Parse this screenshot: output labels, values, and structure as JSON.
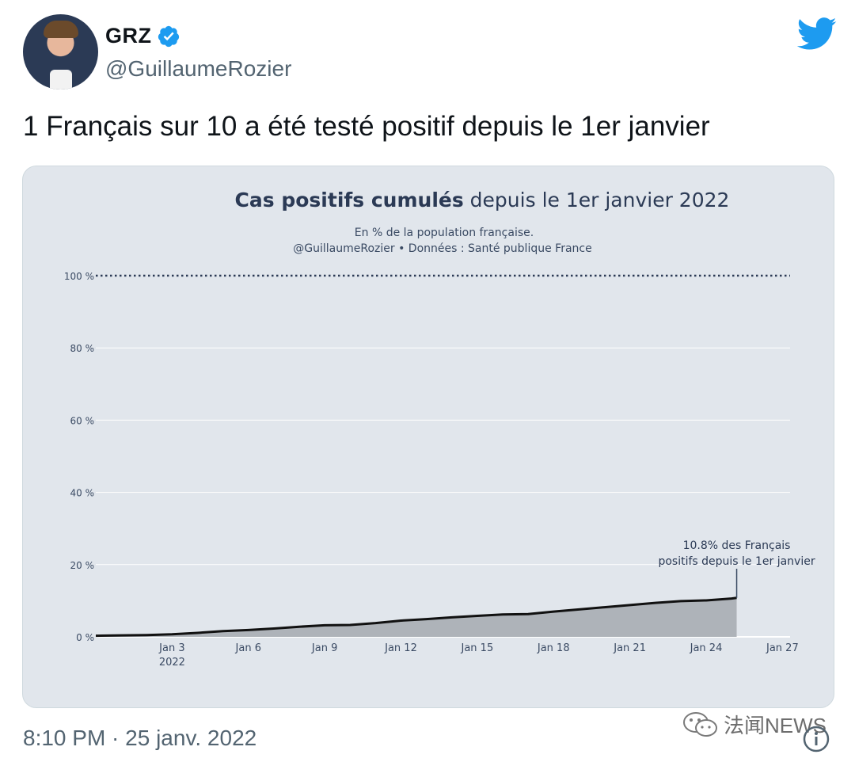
{
  "tweet": {
    "display_name": "GRZ",
    "handle": "@GuillaumeRozier",
    "text": "1 Français sur 10 a été testé positif depuis le 1er janvier",
    "timestamp": "8:10 PM · 25 janv. 2022",
    "verified_color": "#1d9bf0",
    "brand_color": "#1d9bf0"
  },
  "watermark": {
    "text": "法闻NEWS",
    "icon": "wechat-icon"
  },
  "chart_data": {
    "type": "area",
    "title_bold": "Cas positifs cumulés",
    "title_rest": " depuis le 1er janvier 2022",
    "subtitle_line1": "En % de la population française.",
    "subtitle_line2": "@GuillaumeRozier • Données : Santé publique France",
    "y_ticks": [
      "0 %",
      "20 %",
      "40 %",
      "60 %",
      "80 %",
      "100 %"
    ],
    "y_tick_values": [
      0,
      20,
      40,
      60,
      80,
      100
    ],
    "ylim": [
      0,
      100
    ],
    "x_ticks": [
      "Jan 3",
      "Jan 6",
      "Jan 9",
      "Jan 12",
      "Jan 15",
      "Jan 18",
      "Jan 21",
      "Jan 24",
      "Jan 27"
    ],
    "x_tick_days": [
      3,
      6,
      9,
      12,
      15,
      18,
      21,
      24,
      27
    ],
    "x_tick_sublabel": "2022",
    "xlim": [
      0,
      27.3
    ],
    "grid": true,
    "reference_line": {
      "value": 100,
      "style": "dotted"
    },
    "series": [
      {
        "x": [
          0,
          1,
          2,
          3,
          4,
          5,
          6,
          7,
          8,
          9,
          10,
          11,
          12,
          13,
          14,
          15,
          16,
          17,
          18,
          19,
          20,
          21,
          22,
          23,
          24,
          25,
          25.2
        ],
        "values": [
          0.3,
          0.4,
          0.5,
          0.7,
          1.1,
          1.6,
          1.9,
          2.3,
          2.8,
          3.2,
          3.3,
          3.8,
          4.5,
          4.9,
          5.4,
          5.8,
          6.2,
          6.3,
          7.0,
          7.6,
          8.2,
          8.8,
          9.4,
          9.9,
          10.1,
          10.6,
          10.8
        ]
      }
    ],
    "annotation": {
      "line1": "10.8% des Français",
      "line2": "positifs depuis le 1er janvier",
      "x": 25.2,
      "value": 10.8
    }
  }
}
